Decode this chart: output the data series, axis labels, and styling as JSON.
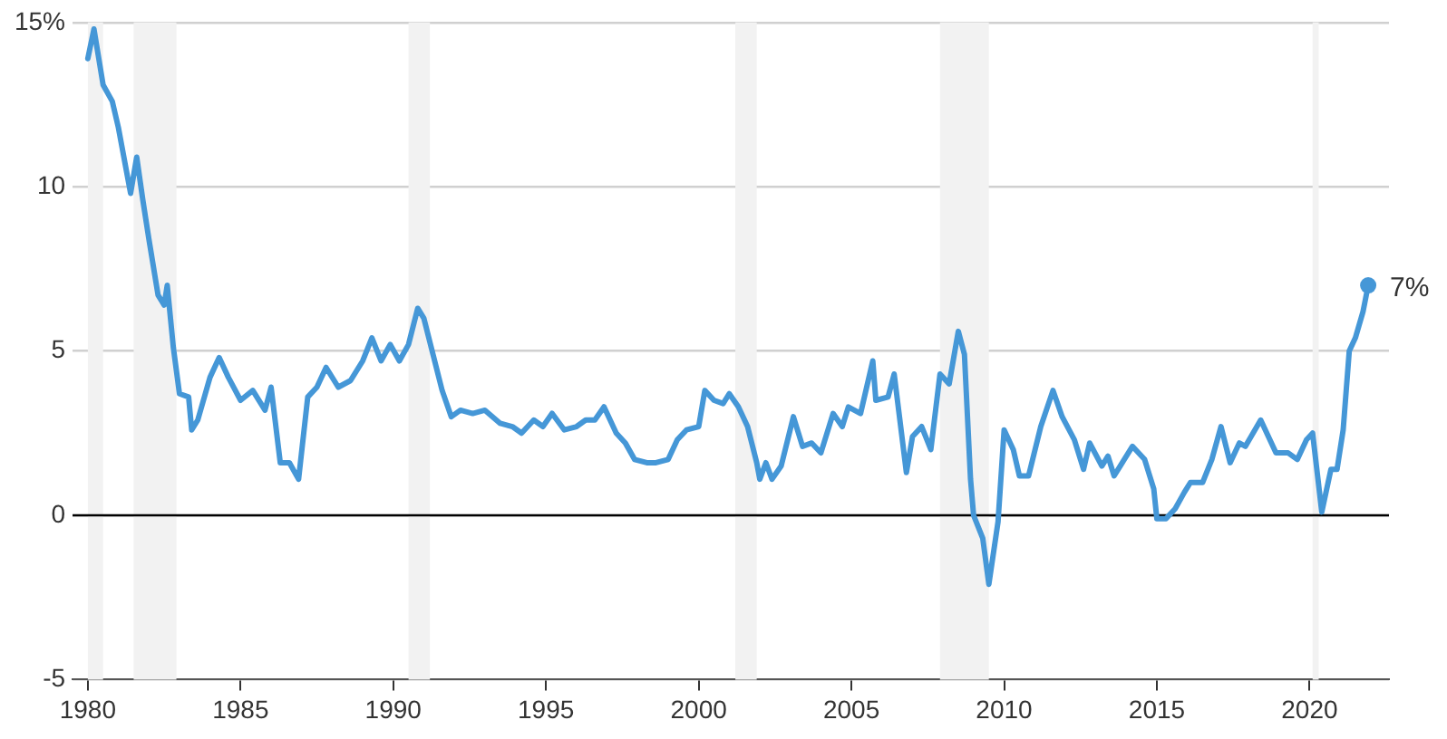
{
  "chart_data": {
    "type": "line",
    "x": [
      1980.0,
      1980.2,
      1980.5,
      1980.8,
      1981.0,
      1981.4,
      1981.6,
      1981.8,
      1982.0,
      1982.3,
      1982.5,
      1982.6,
      1982.8,
      1983.0,
      1983.3,
      1983.4,
      1983.6,
      1984.0,
      1984.3,
      1984.6,
      1985.0,
      1985.4,
      1985.8,
      1986.0,
      1986.3,
      1986.6,
      1986.9,
      1987.2,
      1987.5,
      1987.8,
      1988.2,
      1988.6,
      1989.0,
      1989.3,
      1989.6,
      1989.9,
      1990.2,
      1990.5,
      1990.8,
      1991.0,
      1991.3,
      1991.6,
      1991.9,
      1992.2,
      1992.6,
      1993.0,
      1993.5,
      1993.9,
      1994.2,
      1994.6,
      1994.9,
      1995.2,
      1995.6,
      1996.0,
      1996.3,
      1996.6,
      1996.9,
      1997.3,
      1997.6,
      1997.9,
      1998.3,
      1998.6,
      1999.0,
      1999.3,
      1999.6,
      2000.0,
      2000.2,
      2000.5,
      2000.8,
      2001.0,
      2001.3,
      2001.6,
      2001.9,
      2002.0,
      2002.2,
      2002.4,
      2002.7,
      2003.1,
      2003.4,
      2003.7,
      2004.0,
      2004.4,
      2004.7,
      2004.9,
      2005.3,
      2005.7,
      2005.8,
      2006.2,
      2006.4,
      2006.8,
      2007.0,
      2007.3,
      2007.6,
      2007.9,
      2008.2,
      2008.5,
      2008.7,
      2008.9,
      2009.0,
      2009.3,
      2009.5,
      2009.8,
      2010.0,
      2010.3,
      2010.5,
      2010.8,
      2011.2,
      2011.6,
      2011.9,
      2012.3,
      2012.6,
      2012.8,
      2013.2,
      2013.4,
      2013.6,
      2013.8,
      2014.2,
      2014.6,
      2014.9,
      2015.0,
      2015.3,
      2015.6,
      2015.9,
      2016.1,
      2016.5,
      2016.8,
      2017.1,
      2017.4,
      2017.7,
      2017.9,
      2018.4,
      2018.7,
      2018.9,
      2019.3,
      2019.6,
      2019.9,
      2020.1,
      2020.4,
      2020.7,
      2020.9,
      2021.1,
      2021.3,
      2021.5,
      2021.75,
      2021.92
    ],
    "series": [
      {
        "color": "#4597d7",
        "values": [
          13.9,
          14.8,
          13.1,
          12.6,
          11.8,
          9.8,
          10.9,
          9.6,
          8.4,
          6.7,
          6.4,
          7.0,
          5.1,
          3.7,
          3.6,
          2.6,
          2.9,
          4.2,
          4.8,
          4.2,
          3.5,
          3.8,
          3.2,
          3.9,
          1.6,
          1.6,
          1.1,
          3.6,
          3.9,
          4.5,
          3.9,
          4.1,
          4.7,
          5.4,
          4.7,
          5.2,
          4.7,
          5.2,
          6.3,
          6.0,
          4.9,
          3.8,
          3.0,
          3.2,
          3.1,
          3.2,
          2.8,
          2.7,
          2.5,
          2.9,
          2.7,
          3.1,
          2.6,
          2.7,
          2.9,
          2.9,
          3.3,
          2.5,
          2.2,
          1.7,
          1.6,
          1.6,
          1.7,
          2.3,
          2.6,
          2.7,
          3.8,
          3.5,
          3.4,
          3.7,
          3.3,
          2.7,
          1.6,
          1.1,
          1.6,
          1.1,
          1.5,
          3.0,
          2.1,
          2.2,
          1.9,
          3.1,
          2.7,
          3.3,
          3.1,
          4.7,
          3.5,
          3.6,
          4.3,
          1.3,
          2.4,
          2.7,
          2.0,
          4.3,
          4.0,
          5.6,
          4.9,
          1.1,
          0.0,
          -0.7,
          -2.1,
          -0.2,
          2.6,
          2.0,
          1.2,
          1.2,
          2.7,
          3.8,
          3.0,
          2.3,
          1.4,
          2.2,
          1.5,
          1.8,
          1.2,
          1.5,
          2.1,
          1.7,
          0.8,
          -0.1,
          -0.1,
          0.2,
          0.7,
          1.0,
          1.0,
          1.7,
          2.7,
          1.6,
          2.2,
          2.1,
          2.9,
          2.3,
          1.9,
          1.9,
          1.7,
          2.3,
          2.5,
          0.1,
          1.4,
          1.4,
          2.6,
          5.0,
          5.4,
          6.2,
          7.0
        ]
      }
    ],
    "xlim": [
      1979.5,
      2022.6
    ],
    "xticks": [
      1980,
      1985,
      1990,
      1995,
      2000,
      2005,
      2010,
      2015,
      2020
    ],
    "ylim": [
      -5,
      15
    ],
    "yticks": [
      -5,
      0,
      5,
      10,
      {
        "value": 15,
        "label": "15%"
      }
    ],
    "grid": "y",
    "legend": false,
    "marker": "none",
    "line_style": "solid",
    "ref_lines": [
      {
        "axis": "y",
        "value": 0,
        "color": "#000000"
      }
    ],
    "bands": [
      {
        "axis": "x",
        "from": 1980.0,
        "to": 1980.5,
        "color": "#f2f2f2"
      },
      {
        "axis": "x",
        "from": 1981.5,
        "to": 1982.9,
        "color": "#f2f2f2"
      },
      {
        "axis": "x",
        "from": 1990.5,
        "to": 1991.2,
        "color": "#f2f2f2"
      },
      {
        "axis": "x",
        "from": 2001.2,
        "to": 2001.9,
        "color": "#f2f2f2"
      },
      {
        "axis": "x",
        "from": 2007.9,
        "to": 2009.5,
        "color": "#f2f2f2"
      },
      {
        "axis": "x",
        "from": 2020.1,
        "to": 2020.3,
        "color": "#f2f2f2"
      }
    ],
    "annotations": [
      {
        "text": "7%",
        "x": 2021.92,
        "y": 7.0
      }
    ]
  }
}
